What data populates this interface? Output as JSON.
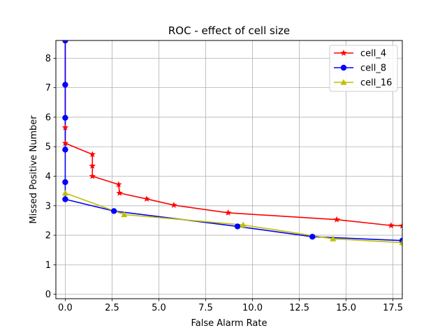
{
  "chart_data": {
    "type": "line",
    "title": "ROC - effect of cell size",
    "xlabel": "False Alarm Rate",
    "ylabel": "Missed Positive Number",
    "xlim": [
      -0.5,
      18.0
    ],
    "ylim": [
      -0.15,
      8.6
    ],
    "xticks": [
      0.0,
      2.5,
      5.0,
      7.5,
      10.0,
      12.5,
      15.0,
      17.5
    ],
    "xtick_labels": [
      "0.0",
      "2.5",
      "5.0",
      "7.5",
      "10.0",
      "12.5",
      "15.0",
      "17.5"
    ],
    "yticks": [
      0,
      1,
      2,
      3,
      4,
      5,
      6,
      7,
      8
    ],
    "ytick_labels": [
      "0",
      "1",
      "2",
      "3",
      "4",
      "5",
      "6",
      "7",
      "8"
    ],
    "grid": true,
    "legend_position": "top-right",
    "series": [
      {
        "name": "cell_4",
        "color": "#ff0000",
        "marker": "star",
        "x": [
          0.0,
          0.0,
          0.0,
          1.45,
          1.45,
          1.45,
          2.85,
          2.9,
          4.35,
          5.8,
          8.7,
          14.5,
          17.4,
          18.0
        ],
        "y": [
          8.6,
          5.65,
          5.12,
          4.74,
          4.35,
          4.0,
          3.72,
          3.43,
          3.23,
          3.02,
          2.76,
          2.53,
          2.33,
          2.32
        ]
      },
      {
        "name": "cell_8",
        "color": "#0000ff",
        "marker": "circle",
        "x": [
          0.0,
          0.0,
          0.0,
          0.0,
          0.0,
          0.0,
          2.6,
          9.2,
          13.2,
          18.0
        ],
        "y": [
          8.6,
          7.1,
          5.98,
          4.9,
          3.8,
          3.22,
          2.82,
          2.3,
          1.95,
          1.82
        ]
      },
      {
        "name": "cell_16",
        "color": "#bfbf00",
        "marker": "triangle",
        "x": [
          0.0,
          3.15,
          9.5,
          14.3,
          18.0
        ],
        "y": [
          3.43,
          2.7,
          2.35,
          1.88,
          1.75
        ]
      }
    ]
  }
}
